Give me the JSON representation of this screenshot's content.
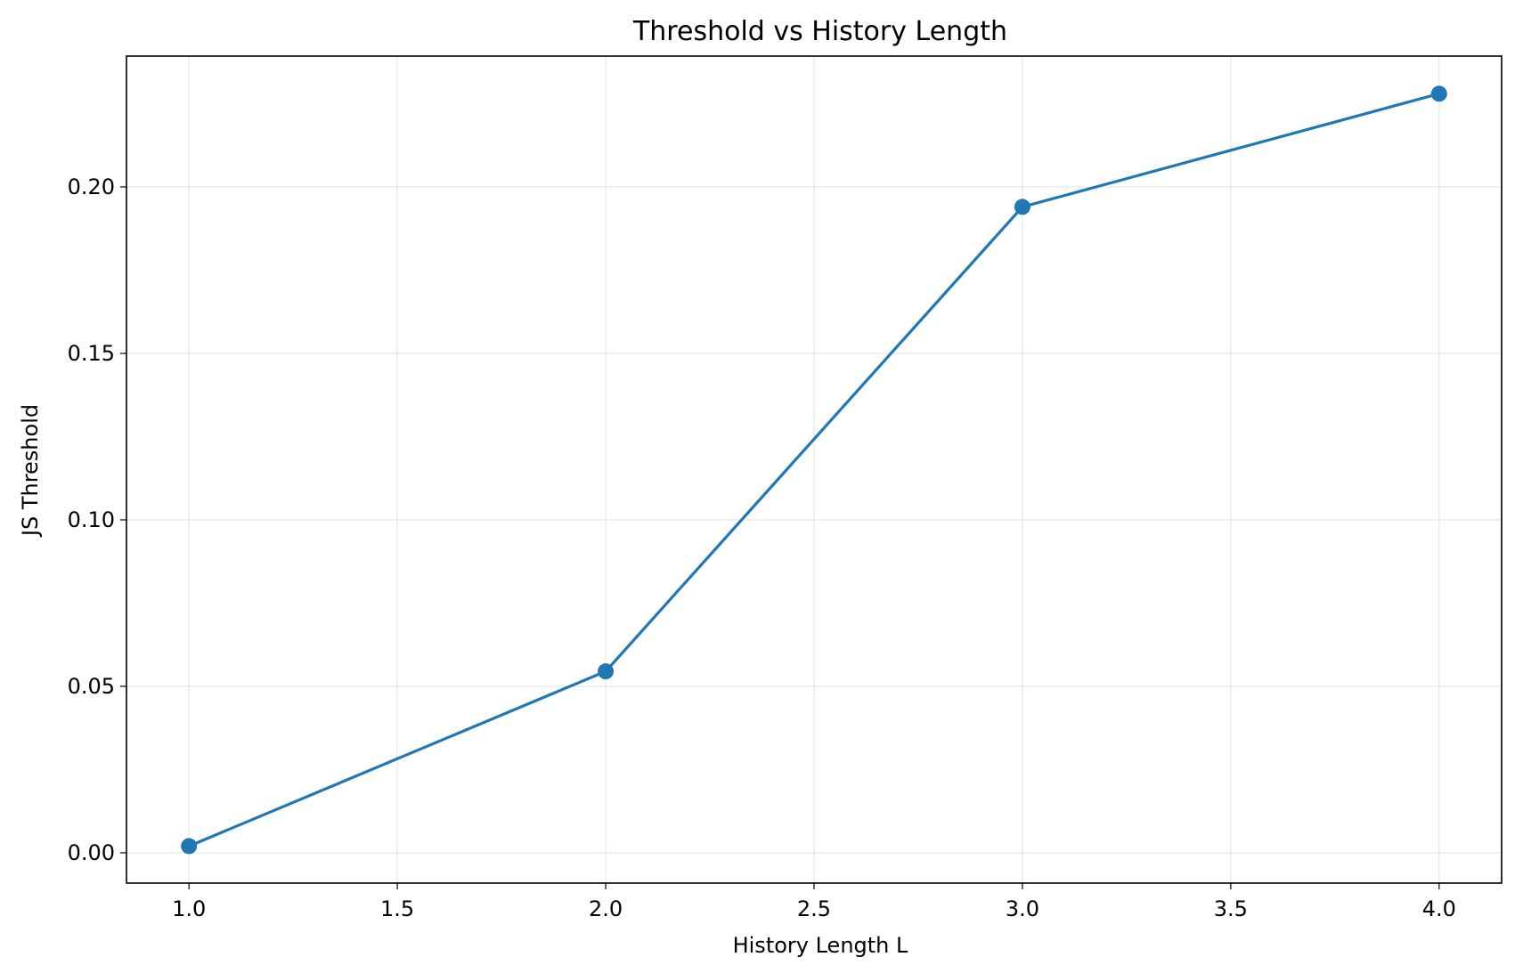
{
  "chart_data": {
    "type": "line",
    "title": "Threshold vs History Length",
    "xlabel": "History Length L",
    "ylabel": "JS Threshold",
    "xlim": [
      0.85,
      4.15
    ],
    "ylim": [
      -0.0091,
      0.2393
    ],
    "x_ticks": [
      "1.0",
      "1.5",
      "2.0",
      "2.5",
      "3.0",
      "3.5",
      "4.0"
    ],
    "y_ticks": [
      "0.00",
      "0.05",
      "0.10",
      "0.15",
      "0.20"
    ],
    "grid": true,
    "series": [
      {
        "color": "#1f77b4",
        "marker": "circle",
        "x": [
          1.0,
          2.0,
          3.0,
          4.0
        ],
        "y": [
          0.002,
          0.0545,
          0.194,
          0.228
        ]
      }
    ]
  }
}
